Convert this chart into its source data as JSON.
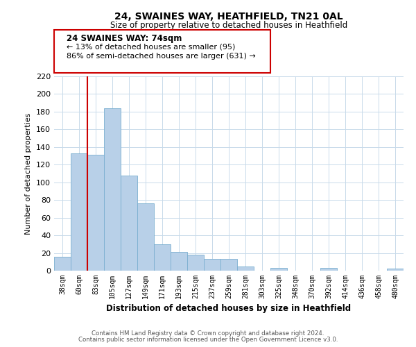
{
  "title": "24, SWAINES WAY, HEATHFIELD, TN21 0AL",
  "subtitle": "Size of property relative to detached houses in Heathfield",
  "xlabel": "Distribution of detached houses by size in Heathfield",
  "ylabel": "Number of detached properties",
  "bar_color": "#b8d0e8",
  "bar_edge_color": "#7aaed0",
  "marker_line_color": "#cc0000",
  "categories": [
    "38sqm",
    "60sqm",
    "83sqm",
    "105sqm",
    "127sqm",
    "149sqm",
    "171sqm",
    "193sqm",
    "215sqm",
    "237sqm",
    "259sqm",
    "281sqm",
    "303sqm",
    "325sqm",
    "348sqm",
    "370sqm",
    "392sqm",
    "414sqm",
    "436sqm",
    "458sqm",
    "480sqm"
  ],
  "values": [
    16,
    133,
    131,
    184,
    108,
    76,
    30,
    21,
    18,
    13,
    13,
    5,
    0,
    3,
    0,
    0,
    3,
    0,
    0,
    0,
    2
  ],
  "ylim": [
    0,
    220
  ],
  "yticks": [
    0,
    20,
    40,
    60,
    80,
    100,
    120,
    140,
    160,
    180,
    200,
    220
  ],
  "annotation_title": "24 SWAINES WAY: 74sqm",
  "annotation_line1": "← 13% of detached houses are smaller (95)",
  "annotation_line2": "86% of semi-detached houses are larger (631) →",
  "footer_line1": "Contains HM Land Registry data © Crown copyright and database right 2024.",
  "footer_line2": "Contains public sector information licensed under the Open Government Licence v3.0.",
  "background_color": "#ffffff",
  "grid_color": "#c8daea"
}
